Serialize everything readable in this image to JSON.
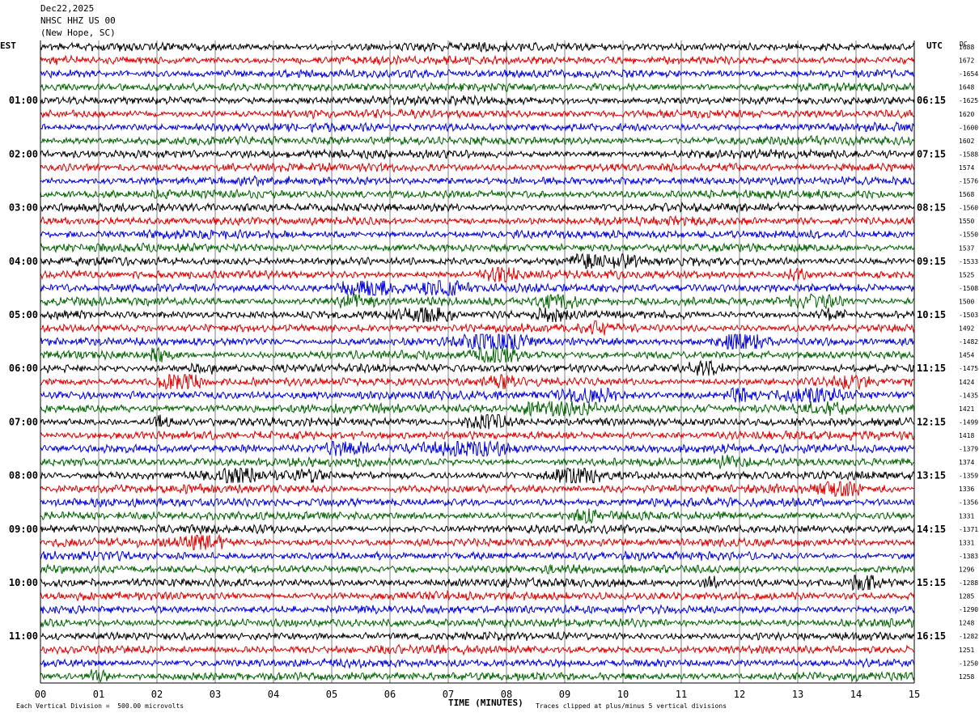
{
  "header": {
    "date": "Dec22,2025",
    "station": "NHSC HHZ US 00",
    "location": "(New Hope, SC)"
  },
  "left_axis_title": "EST",
  "right_axis_title": "UTC",
  "dc_label": "DC",
  "footer": {
    "scale_note": "Each Vertical Division =  500.00 microvolts",
    "xtitle": "TIME (MINUTES)",
    "clip_note": "Traces clipped at plus/minus 5 vertical divisions"
  },
  "colors": {
    "trace_cycle": [
      "#000000",
      "#e00000",
      "#0000e0",
      "#006400"
    ],
    "grid": "#808080",
    "frame": "#000000"
  },
  "chart_data": {
    "type": "line",
    "title": "Dec22,2025 NHSC HHZ US 00 (New Hope, SC)",
    "xlabel": "TIME (MINUTES)",
    "xlim": [
      0,
      15
    ],
    "x_ticks": [
      "00",
      "01",
      "02",
      "03",
      "04",
      "05",
      "06",
      "07",
      "08",
      "09",
      "10",
      "11",
      "12",
      "13",
      "14",
      "15"
    ],
    "est_hour_labels": [
      "01:00",
      "02:00",
      "03:00",
      "04:00",
      "05:00",
      "06:00",
      "07:00",
      "08:00",
      "09:00",
      "10:00",
      "11:00"
    ],
    "utc_hour_labels": [
      "06:15",
      "07:15",
      "08:15",
      "09:15",
      "10:15",
      "11:15",
      "12:15",
      "13:15",
      "14:15",
      "15:15",
      "16:15"
    ],
    "rows_per_hour": 4,
    "num_traces": 48,
    "trace_offsets": [
      "1688",
      "1672",
      "-1654",
      "1648",
      "-1625",
      "1620",
      "-1600",
      "1602",
      "-1588",
      "1574",
      "-1576",
      "1568",
      "-1560",
      "1550",
      "-1550",
      "1537",
      "-1533",
      "1525",
      "-1508",
      "1500",
      "-1503",
      "1492",
      "-1482",
      "1454",
      "-1475",
      "1424",
      "-1435",
      "1421",
      "-1499",
      "1418",
      "-1379",
      "1374",
      "-1359",
      "1336",
      "-1356",
      "1331",
      "-1371",
      "1331",
      "-1383",
      "1296",
      "-1288",
      "1285",
      "-1290",
      "1248",
      "-1282",
      "1251",
      "-1250",
      "1258"
    ],
    "events": [
      {
        "trace": 16,
        "minute": 9.4,
        "amp": 1.1,
        "dur": 0.5
      },
      {
        "trace": 16,
        "minute": 10.0,
        "amp": 0.9,
        "dur": 0.4
      },
      {
        "trace": 17,
        "minute": 7.9,
        "amp": 1.5,
        "dur": 0.5
      },
      {
        "trace": 17,
        "minute": 13.0,
        "amp": 0.9,
        "dur": 0.3
      },
      {
        "trace": 18,
        "minute": 5.6,
        "amp": 1.4,
        "dur": 0.9
      },
      {
        "trace": 18,
        "minute": 6.9,
        "amp": 1.6,
        "dur": 0.6
      },
      {
        "trace": 19,
        "minute": 5.4,
        "amp": 0.9,
        "dur": 0.6
      },
      {
        "trace": 19,
        "minute": 8.9,
        "amp": 1.0,
        "dur": 0.5
      },
      {
        "trace": 19,
        "minute": 13.2,
        "amp": 0.9,
        "dur": 0.9
      },
      {
        "trace": 20,
        "minute": 6.6,
        "amp": 1.3,
        "dur": 0.7
      },
      {
        "trace": 20,
        "minute": 8.8,
        "amp": 1.3,
        "dur": 0.4
      },
      {
        "trace": 20,
        "minute": 13.6,
        "amp": 0.8,
        "dur": 0.4
      },
      {
        "trace": 21,
        "minute": 9.6,
        "amp": 1.1,
        "dur": 0.4
      },
      {
        "trace": 22,
        "minute": 7.8,
        "amp": 1.5,
        "dur": 0.8
      },
      {
        "trace": 22,
        "minute": 12.0,
        "amp": 2.0,
        "dur": 0.6
      },
      {
        "trace": 23,
        "minute": 7.9,
        "amp": 1.4,
        "dur": 0.7
      },
      {
        "trace": 23,
        "minute": 2.0,
        "amp": 0.7,
        "dur": 0.4
      },
      {
        "trace": 24,
        "minute": 11.4,
        "amp": 1.3,
        "dur": 0.5
      },
      {
        "trace": 24,
        "minute": 2.8,
        "amp": 0.7,
        "dur": 0.4
      },
      {
        "trace": 25,
        "minute": 2.4,
        "amp": 1.6,
        "dur": 0.6
      },
      {
        "trace": 25,
        "minute": 13.9,
        "amp": 1.1,
        "dur": 0.4
      },
      {
        "trace": 25,
        "minute": 7.9,
        "amp": 0.8,
        "dur": 0.4
      },
      {
        "trace": 26,
        "minute": 9.4,
        "amp": 1.0,
        "dur": 1.0
      },
      {
        "trace": 26,
        "minute": 13.3,
        "amp": 0.9,
        "dur": 0.8
      },
      {
        "trace": 26,
        "minute": 12.0,
        "amp": 0.8,
        "dur": 0.4
      },
      {
        "trace": 27,
        "minute": 8.9,
        "amp": 1.2,
        "dur": 1.2
      },
      {
        "trace": 27,
        "minute": 13.4,
        "amp": 0.9,
        "dur": 0.8
      },
      {
        "trace": 28,
        "minute": 7.7,
        "amp": 1.3,
        "dur": 0.6
      },
      {
        "trace": 28,
        "minute": 2.1,
        "amp": 0.8,
        "dur": 0.4
      },
      {
        "trace": 30,
        "minute": 7.3,
        "amp": 1.1,
        "dur": 1.3
      },
      {
        "trace": 30,
        "minute": 5.3,
        "amp": 0.8,
        "dur": 0.8
      },
      {
        "trace": 31,
        "minute": 11.8,
        "amp": 0.7,
        "dur": 0.5
      },
      {
        "trace": 32,
        "minute": 9.2,
        "amp": 2.2,
        "dur": 0.6
      },
      {
        "trace": 32,
        "minute": 3.4,
        "amp": 1.0,
        "dur": 0.5
      },
      {
        "trace": 32,
        "minute": 4.6,
        "amp": 0.9,
        "dur": 0.3
      },
      {
        "trace": 33,
        "minute": 13.7,
        "amp": 1.4,
        "dur": 0.6
      },
      {
        "trace": 35,
        "minute": 9.4,
        "amp": 1.2,
        "dur": 0.3
      },
      {
        "trace": 37,
        "minute": 2.8,
        "amp": 1.1,
        "dur": 0.6
      },
      {
        "trace": 40,
        "minute": 14.1,
        "amp": 1.4,
        "dur": 0.4
      },
      {
        "trace": 40,
        "minute": 11.5,
        "amp": 0.8,
        "dur": 0.3
      },
      {
        "trace": 47,
        "minute": 1.0,
        "amp": 1.0,
        "dur": 0.3
      }
    ]
  }
}
